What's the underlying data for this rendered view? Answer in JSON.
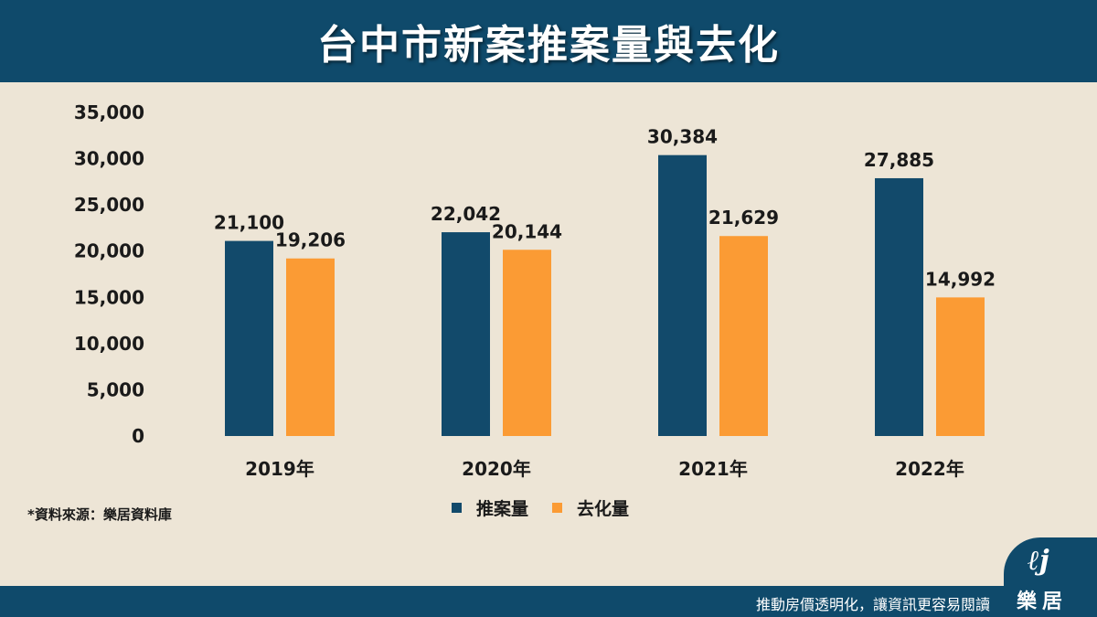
{
  "header": {
    "title": "台中市新案推案量與去化"
  },
  "chart_data": {
    "type": "bar",
    "categories": [
      "2019年",
      "2020年",
      "2021年",
      "2022年"
    ],
    "series": [
      {
        "name": "推案量",
        "values": [
          21100,
          22042,
          30384,
          27885
        ],
        "labels": [
          "21,100",
          "22,042",
          "30,384",
          "27,885"
        ],
        "color": "#124a6b"
      },
      {
        "name": "去化量",
        "values": [
          19206,
          20144,
          21629,
          14992
        ],
        "labels": [
          "19,206",
          "20,144",
          "21,629",
          "14,992"
        ],
        "color": "#fb9b34"
      }
    ],
    "yticks": [
      0,
      5000,
      10000,
      15000,
      20000,
      25000,
      30000,
      35000
    ],
    "ytick_labels": [
      "0",
      "5,000",
      "10,000",
      "15,000",
      "20,000",
      "25,000",
      "30,000",
      "35,000"
    ],
    "ylim": [
      0,
      35000
    ],
    "grid": false,
    "legend_position": "bottom-center"
  },
  "legend": {
    "items": [
      "推案量",
      "去化量"
    ]
  },
  "source_note": "*資料來源：樂居資料庫",
  "footer": {
    "slogan": "推動房價透明化，讓資訊更容易閱讀"
  },
  "logo": {
    "text": "樂居",
    "icon": "leju-logo-icon"
  },
  "colors": {
    "header_bg": "#0f4a6b",
    "page_bg": "#ede5d6",
    "series_1": "#124a6b",
    "series_2": "#fb9b34"
  }
}
